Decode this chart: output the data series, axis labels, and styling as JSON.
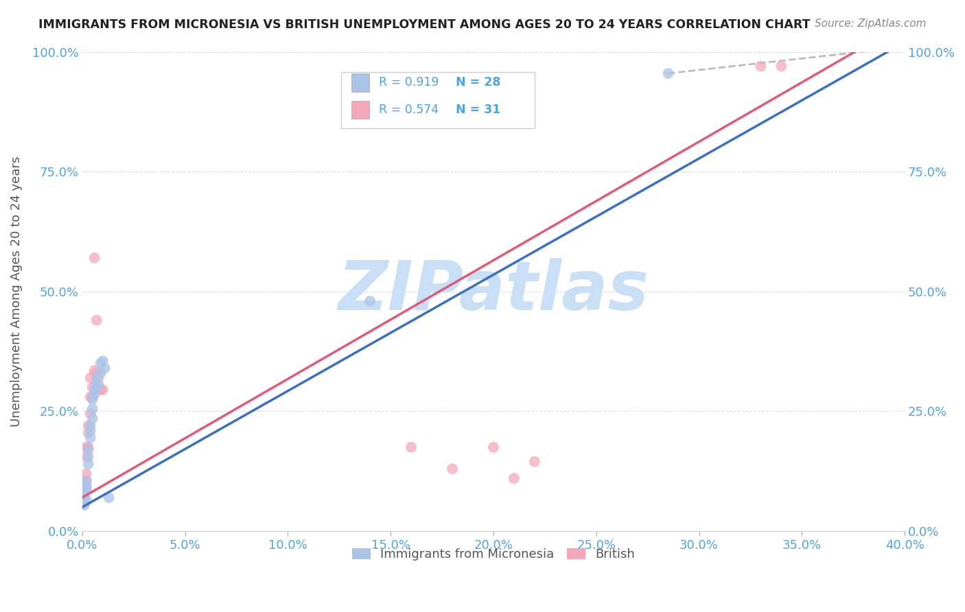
{
  "title": "IMMIGRANTS FROM MICRONESIA VS BRITISH UNEMPLOYMENT AMONG AGES 20 TO 24 YEARS CORRELATION CHART",
  "source": "Source: ZipAtlas.com",
  "ylabel": "Unemployment Among Ages 20 to 24 years",
  "xlim": [
    0.0,
    0.4
  ],
  "ylim": [
    0.0,
    1.0
  ],
  "xticks": [
    0.0,
    0.05,
    0.1,
    0.15,
    0.2,
    0.25,
    0.3,
    0.35,
    0.4
  ],
  "yticks": [
    0.0,
    0.25,
    0.5,
    0.75,
    1.0
  ],
  "xtick_labels": [
    "0.0%",
    "5.0%",
    "10.0%",
    "15.0%",
    "20.0%",
    "25.0%",
    "30.0%",
    "35.0%",
    "40.0%"
  ],
  "ytick_labels": [
    "0.0%",
    "25.0%",
    "50.0%",
    "75.0%",
    "100.0%"
  ],
  "legend1_label": "Immigrants from Micronesia",
  "legend2_label": "British",
  "R_micronesia": 0.919,
  "N_micronesia": 28,
  "R_british": 0.574,
  "N_british": 31,
  "color_micronesia": "#aac4e8",
  "color_british": "#f4a7b9",
  "color_line_micronesia": "#3a6fc4",
  "color_line_british": "#e05a7a",
  "color_title": "#222222",
  "color_axis_labels": "#4fa3e0",
  "watermark_text": "ZIPatlas",
  "watermark_color": "#c8dff5",
  "blue_line": [
    [
      0.0,
      0.05
    ],
    [
      0.4,
      1.02
    ]
  ],
  "pink_line": [
    [
      0.0,
      0.07
    ],
    [
      0.4,
      1.06
    ]
  ],
  "dashed_line": [
    [
      0.285,
      0.955
    ],
    [
      0.4,
      1.01
    ]
  ],
  "blue_dots": [
    [
      0.001,
      0.055
    ],
    [
      0.001,
      0.07
    ],
    [
      0.001,
      0.08
    ],
    [
      0.002,
      0.065
    ],
    [
      0.002,
      0.085
    ],
    [
      0.002,
      0.095
    ],
    [
      0.002,
      0.105
    ],
    [
      0.003,
      0.14
    ],
    [
      0.003,
      0.155
    ],
    [
      0.003,
      0.17
    ],
    [
      0.004,
      0.195
    ],
    [
      0.004,
      0.21
    ],
    [
      0.004,
      0.22
    ],
    [
      0.005,
      0.235
    ],
    [
      0.005,
      0.255
    ],
    [
      0.005,
      0.275
    ],
    [
      0.006,
      0.285
    ],
    [
      0.006,
      0.295
    ],
    [
      0.007,
      0.305
    ],
    [
      0.007,
      0.32
    ],
    [
      0.008,
      0.305
    ],
    [
      0.009,
      0.33
    ],
    [
      0.009,
      0.35
    ],
    [
      0.01,
      0.355
    ],
    [
      0.011,
      0.34
    ],
    [
      0.013,
      0.07
    ],
    [
      0.14,
      0.48
    ],
    [
      0.285,
      0.955
    ]
  ],
  "pink_dots": [
    [
      0.001,
      0.055
    ],
    [
      0.001,
      0.07
    ],
    [
      0.001,
      0.085
    ],
    [
      0.001,
      0.1
    ],
    [
      0.002,
      0.09
    ],
    [
      0.002,
      0.105
    ],
    [
      0.002,
      0.12
    ],
    [
      0.002,
      0.155
    ],
    [
      0.002,
      0.175
    ],
    [
      0.003,
      0.175
    ],
    [
      0.003,
      0.205
    ],
    [
      0.003,
      0.22
    ],
    [
      0.004,
      0.245
    ],
    [
      0.004,
      0.28
    ],
    [
      0.004,
      0.32
    ],
    [
      0.005,
      0.28
    ],
    [
      0.005,
      0.3
    ],
    [
      0.006,
      0.335
    ],
    [
      0.006,
      0.57
    ],
    [
      0.007,
      0.44
    ],
    [
      0.007,
      0.33
    ],
    [
      0.008,
      0.32
    ],
    [
      0.009,
      0.295
    ],
    [
      0.01,
      0.295
    ],
    [
      0.16,
      0.175
    ],
    [
      0.18,
      0.13
    ],
    [
      0.2,
      0.175
    ],
    [
      0.21,
      0.11
    ],
    [
      0.22,
      0.145
    ],
    [
      0.33,
      0.97
    ],
    [
      0.34,
      0.97
    ]
  ]
}
